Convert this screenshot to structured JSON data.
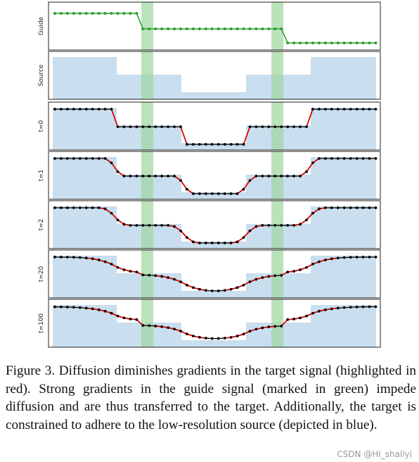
{
  "figure": {
    "panels": [
      {
        "label": "Guide",
        "kind": "guide"
      },
      {
        "label": "Source",
        "kind": "source"
      },
      {
        "label": "t=0",
        "kind": "target",
        "t": 0
      },
      {
        "label": "t=1",
        "kind": "target",
        "t": 1
      },
      {
        "label": "t=2",
        "kind": "target",
        "t": 2
      },
      {
        "label": "t=20",
        "kind": "target",
        "t": 20
      },
      {
        "label": "t=100",
        "kind": "target",
        "t": 100
      }
    ],
    "guide_values": [
      1,
      1,
      1,
      1,
      1,
      1,
      1,
      1,
      1,
      1,
      1,
      1,
      1,
      1,
      0.5,
      0.5,
      0.5,
      0.5,
      0.5,
      0.5,
      0.5,
      0.5,
      0.5,
      0.5,
      0.5,
      0.5,
      0.5,
      0.5,
      0.5,
      0.5,
      0.5,
      0.5,
      0.5,
      0.5,
      0.5,
      0.5,
      0.5,
      0.5,
      0.5,
      0.5,
      0.5,
      0.5,
      0.5,
      0.5,
      0.5,
      0.5,
      0.5,
      0.5,
      0.5,
      0.5,
      0.5,
      0.5
    ],
    "source_blocks": [
      1.0,
      0.5,
      0.0,
      0.5,
      1.0
    ],
    "guide_edges_x": [
      14,
      37
    ],
    "colors": {
      "guide": "#2ca02c",
      "source": "#c9deee",
      "band": "#9ed69e",
      "target": "#000000",
      "gradient": "#dd0000"
    }
  },
  "caption": "Figure 3. Diffusion diminishes gradients in the target signal (highlighted in red). Strong gradients in the guide signal (marked in green) impede diffusion and are thus transferred to the target. Additionally, the target is constrained to adhere to the low-resolution source (depicted in blue).",
  "watermark": "CSDN @Hi_shallyi"
}
